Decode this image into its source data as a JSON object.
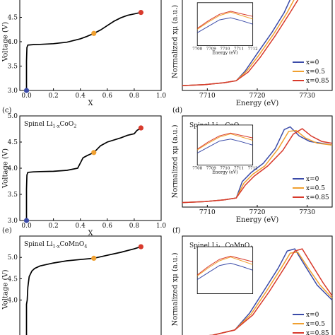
{
  "colors": {
    "x0": "#3b4ba8",
    "x05": "#f0a030",
    "x085": "#d83a2c",
    "curve": "#000000",
    "axis": "#000000"
  },
  "chart_data": [
    {
      "panel": "",
      "type": "line",
      "title": "",
      "xlabel": "X",
      "ylabel": "Voltage (V)",
      "xlim": [
        -0.05,
        1.0
      ],
      "ylim": [
        3.0,
        5.0
      ],
      "xticks": [
        "0.0",
        "0.2",
        "0.4",
        "0.6",
        "0.8",
        "1.0"
      ],
      "yticks": [
        "3.0",
        "3.5",
        "4.0",
        "4.5"
      ],
      "x": [
        0.0,
        0.0,
        0.003,
        0.01,
        0.05,
        0.1,
        0.2,
        0.3,
        0.4,
        0.45,
        0.5,
        0.55,
        0.6,
        0.65,
        0.7,
        0.75,
        0.8,
        0.85
      ],
      "y": [
        3.0,
        3.6,
        3.88,
        3.93,
        3.94,
        3.945,
        3.96,
        3.99,
        4.06,
        4.11,
        4.17,
        4.24,
        4.33,
        4.42,
        4.49,
        4.54,
        4.57,
        4.6
      ],
      "markers": [
        {
          "x": 0.0,
          "y": 3.0,
          "label": "x=0"
        },
        {
          "x": 0.5,
          "y": 4.17,
          "label": "x=0.5"
        },
        {
          "x": 0.85,
          "y": 4.6,
          "label": "x=0.85"
        }
      ]
    },
    {
      "panel": "",
      "type": "line",
      "title": "",
      "xlabel": "Energy (eV)",
      "ylabel": "Normalized xμ (a.u.)",
      "xlim": [
        7705,
        7735
      ],
      "xticks": [
        "7710",
        "7720",
        "7730"
      ],
      "legend": [
        "x=0",
        "x=0.5",
        "x=0.85"
      ],
      "legend_position": "bottom-right",
      "inset": {
        "xlabel": "Energy (eV)",
        "xticks": [
          "7708",
          "7709",
          "7710",
          "7711",
          "7712"
        ]
      }
    },
    {
      "panel": "(c)",
      "type": "line",
      "title": "Spinel Li",
      "title_sub": "1-x",
      "title_tail": "CoO",
      "title_tail_sub": "2",
      "xlabel": "X",
      "ylabel": "Voltage (V)",
      "xlim": [
        -0.05,
        1.0
      ],
      "ylim": [
        3.0,
        5.0
      ],
      "xticks": [
        "0.0",
        "0.2",
        "0.4",
        "0.6",
        "0.8",
        "1.0"
      ],
      "yticks": [
        "3.0",
        "3.5",
        "4.0",
        "4.5",
        "5.0"
      ],
      "x": [
        0.0,
        0.0,
        0.003,
        0.01,
        0.05,
        0.1,
        0.2,
        0.3,
        0.38,
        0.4,
        0.42,
        0.45,
        0.5,
        0.55,
        0.6,
        0.7,
        0.75,
        0.8,
        0.82,
        0.85
      ],
      "y": [
        3.0,
        3.6,
        3.87,
        3.92,
        3.93,
        3.935,
        3.94,
        3.96,
        4.0,
        4.1,
        4.2,
        4.24,
        4.3,
        4.43,
        4.5,
        4.58,
        4.63,
        4.66,
        4.72,
        4.77
      ],
      "markers": [
        {
          "x": 0.0,
          "y": 3.0,
          "label": "x=0"
        },
        {
          "x": 0.5,
          "y": 4.3,
          "label": "x=0.5"
        },
        {
          "x": 0.85,
          "y": 4.77,
          "label": "x=0.85"
        }
      ]
    },
    {
      "panel": "(d)",
      "type": "line",
      "title": "Spinel Li",
      "title_sub": "1-x",
      "title_tail": "CoO",
      "title_tail_sub": "2",
      "xlabel": "Energy (eV)",
      "ylabel": "Normalized xμ (a.u.)",
      "xlim": [
        7705,
        7735
      ],
      "xticks": [
        "7710",
        "7720",
        "7730"
      ],
      "legend": [
        "x=0",
        "x=0.5",
        "x=0.85"
      ],
      "legend_position": "bottom-right",
      "inset": {
        "xlabel": "Energy (eV)",
        "xticks": [
          "7708",
          "7709",
          "7710",
          "7711",
          "7712"
        ]
      }
    },
    {
      "panel": "(e)",
      "type": "line",
      "title": "Spinel Li",
      "title_sub": "1-x",
      "title_tail": "CoMnO",
      "title_tail_sub": "4",
      "xlabel": "",
      "ylabel": "Voltage (V)",
      "xlim": [
        -0.05,
        1.0
      ],
      "ylim": [
        3.0,
        5.5
      ],
      "yticks": [
        "4.0",
        "4.5",
        "5.0"
      ],
      "x": [
        0.0,
        0.0,
        0.005,
        0.01,
        0.02,
        0.04,
        0.06,
        0.1,
        0.2,
        0.3,
        0.4,
        0.5,
        0.6,
        0.7,
        0.8,
        0.85
      ],
      "y": [
        3.0,
        3.9,
        4.0,
        4.3,
        4.55,
        4.68,
        4.74,
        4.8,
        4.87,
        4.92,
        4.95,
        4.98,
        5.05,
        5.12,
        5.2,
        5.25
      ],
      "markers": [
        {
          "x": 0.5,
          "y": 4.98,
          "label": "x=0.5"
        },
        {
          "x": 0.85,
          "y": 5.25,
          "label": "x=0.85"
        }
      ]
    },
    {
      "panel": "(f)",
      "type": "line",
      "title": "Spinel Li",
      "title_sub": "1-x",
      "title_tail": "CoMnO",
      "title_tail_sub": "4",
      "xlabel": "",
      "ylabel": "Normalized xμ (a.u.)",
      "xlim": [
        7705,
        7735
      ],
      "legend": [
        "x=0",
        "x=0.5",
        "x=0.85"
      ],
      "legend_position": "bottom-right"
    }
  ]
}
